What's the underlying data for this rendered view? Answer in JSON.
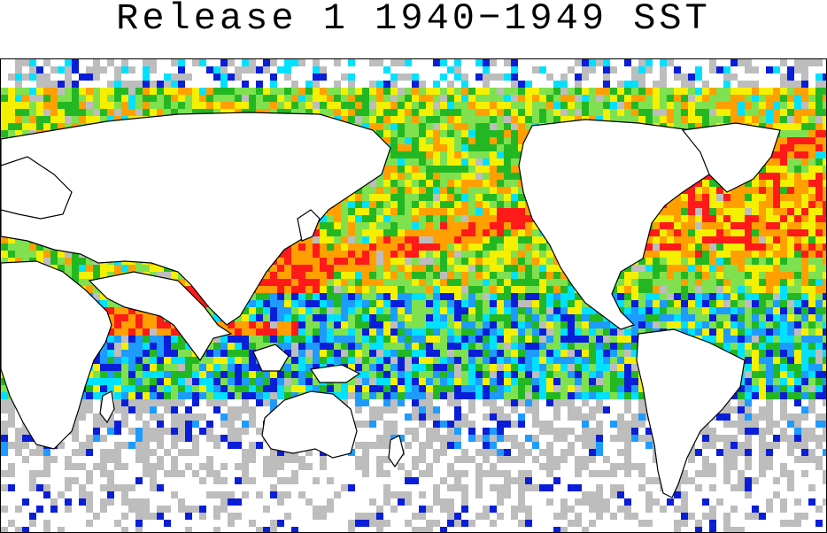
{
  "title": "Release 1 1940−1949 SST",
  "map": {
    "projection": "equirectangular-pacific-centered",
    "variable": "SST observation density",
    "colors": {
      "gray": "#bdbdbd",
      "navy": "#0a1ed8",
      "blue": "#1e9bff",
      "cyan": "#00e1ff",
      "green": "#23b823",
      "lightgreen": "#7fe14f",
      "yellow": "#f5f000",
      "orange": "#ffa000",
      "red": "#ff1a1a",
      "land": "#ffffff",
      "coast": "#000000"
    }
  }
}
